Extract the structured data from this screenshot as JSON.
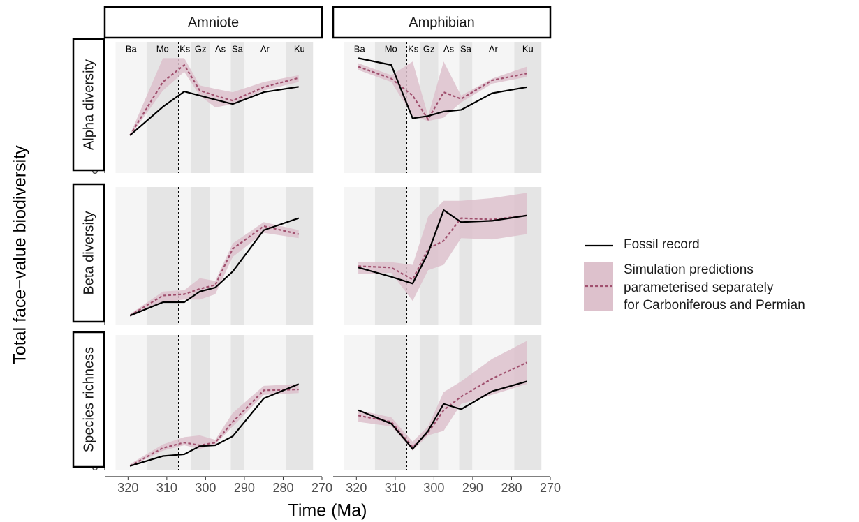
{
  "chart_data": {
    "type": "line",
    "xlabel": "Time (Ma)",
    "ylabel": "Total face−value biodiversity",
    "columns": [
      "Amniote",
      "Amphibian"
    ],
    "xlim": [
      326,
      270
    ],
    "xticks": [
      320,
      310,
      300,
      290,
      280,
      270
    ],
    "boundary": 307,
    "stages": [
      {
        "label": "Ba",
        "start": 323.2,
        "end": 315.2
      },
      {
        "label": "Mo",
        "start": 315.2,
        "end": 307.0
      },
      {
        "label": "Ks",
        "start": 307.0,
        "end": 303.7
      },
      {
        "label": "Gz",
        "start": 303.7,
        "end": 298.9
      },
      {
        "label": "As",
        "start": 298.9,
        "end": 293.5
      },
      {
        "label": "Sa",
        "start": 293.5,
        "end": 290.1
      },
      {
        "label": "Ar",
        "start": 290.1,
        "end": 279.3
      },
      {
        "label": "Ku",
        "start": 279.3,
        "end": 272.3
      }
    ],
    "stage_colors": [
      "#f5f5f5",
      "#e5e5e5"
    ],
    "x": [
      319.5,
      311,
      305.5,
      301.5,
      297.5,
      293,
      285,
      276
    ],
    "series": [
      {
        "name": "Fossil record",
        "color": "#000000"
      },
      {
        "name": "Simulation predictions\nparameterised separately\nfor Carboniferous and Permian",
        "color": "#a0506e",
        "band_color": "#ddc1cc"
      }
    ],
    "rows": [
      {
        "label": "Alpha diversity",
        "ylim": [
          -0.08,
          3.78
        ],
        "yticks": [
          0,
          1,
          2,
          3
        ],
        "panels": [
          {
            "fossil": [
              1.03,
              1.87,
              2.32,
              2.2,
              2.08,
              1.95,
              2.3,
              2.46
            ],
            "sim": [
              1.03,
              2.6,
              3.1,
              2.35,
              2.2,
              2.05,
              2.45,
              2.72
            ],
            "sim_lower": [
              1.0,
              2.35,
              2.9,
              2.2,
              1.85,
              1.95,
              2.35,
              2.6
            ],
            "sim_upper": [
              1.05,
              3.3,
              3.3,
              2.5,
              2.4,
              2.3,
              2.6,
              2.8
            ]
          },
          {
            "fossil": [
              3.3,
              3.1,
              1.53,
              1.6,
              1.73,
              1.78,
              2.27,
              2.45
            ],
            "sim": [
              3.05,
              2.7,
              2.2,
              1.5,
              2.3,
              2.1,
              2.65,
              2.85
            ],
            "sim_lower": [
              2.95,
              2.6,
              1.6,
              1.45,
              1.55,
              2.0,
              2.55,
              2.75
            ],
            "sim_upper": [
              3.15,
              2.8,
              3.2,
              1.6,
              3.2,
              2.2,
              2.7,
              3.05
            ]
          }
        ]
      },
      {
        "label": "Beta diversity",
        "ylim": [
          -2.35,
          49.15
        ],
        "yticks": [
          0,
          10,
          20,
          30,
          40
        ],
        "panels": [
          {
            "fossil": [
              1,
              6,
              6,
              10,
              11.5,
              17.5,
              33,
              37.5
            ],
            "sim": [
              1,
              8.5,
              9,
              11,
              12.5,
              26,
              34.5,
              31.5
            ],
            "sim_lower": [
              0.5,
              6,
              7,
              7,
              9,
              23,
              32,
              30
            ],
            "sim_upper": [
              1.5,
              10,
              10.5,
              15,
              14,
              28,
              36,
              33
            ]
          },
          {
            "fossil": [
              19,
              15.5,
              13,
              24.5,
              40.5,
              36,
              36.5,
              38.5
            ],
            "sim": [
              19.5,
              19,
              14.5,
              26,
              29,
              37.5,
              37,
              38.5
            ],
            "sim_lower": [
              16.5,
              17,
              6.5,
              18,
              20,
              30,
              29.5,
              31.5
            ],
            "sim_upper": [
              21,
              21,
              20,
              38,
              44,
              44,
              45,
              47
            ]
          }
        ]
      },
      {
        "label": "Species richness",
        "ylim": [
          -3.1,
          146.5
        ],
        "yticks": [
          0,
          50,
          100
        ],
        "panels": [
          {
            "fossil": [
              1,
              12,
              14,
              23,
              24,
              34,
              76,
              92
            ],
            "sim": [
              1,
              21,
              27,
              24,
              27,
              50,
              85,
              86
            ],
            "sim_lower": [
              0,
              18,
              24,
              20,
              25,
              45,
              80,
              82
            ],
            "sim_upper": [
              3,
              25,
              33,
              35,
              30,
              60,
              90,
              92
            ]
          },
          {
            "fossil": [
              63,
              48,
              20,
              40,
              70,
              64,
              84,
              95
            ],
            "sim": [
              57,
              50,
              22,
              38,
              63,
              78,
              98,
              116
            ],
            "sim_lower": [
              50,
              45,
              18,
              35,
              40,
              70,
              80,
              92
            ],
            "sim_upper": [
              63,
              55,
              28,
              45,
              83,
              95,
              120,
              140
            ]
          }
        ]
      }
    ]
  }
}
